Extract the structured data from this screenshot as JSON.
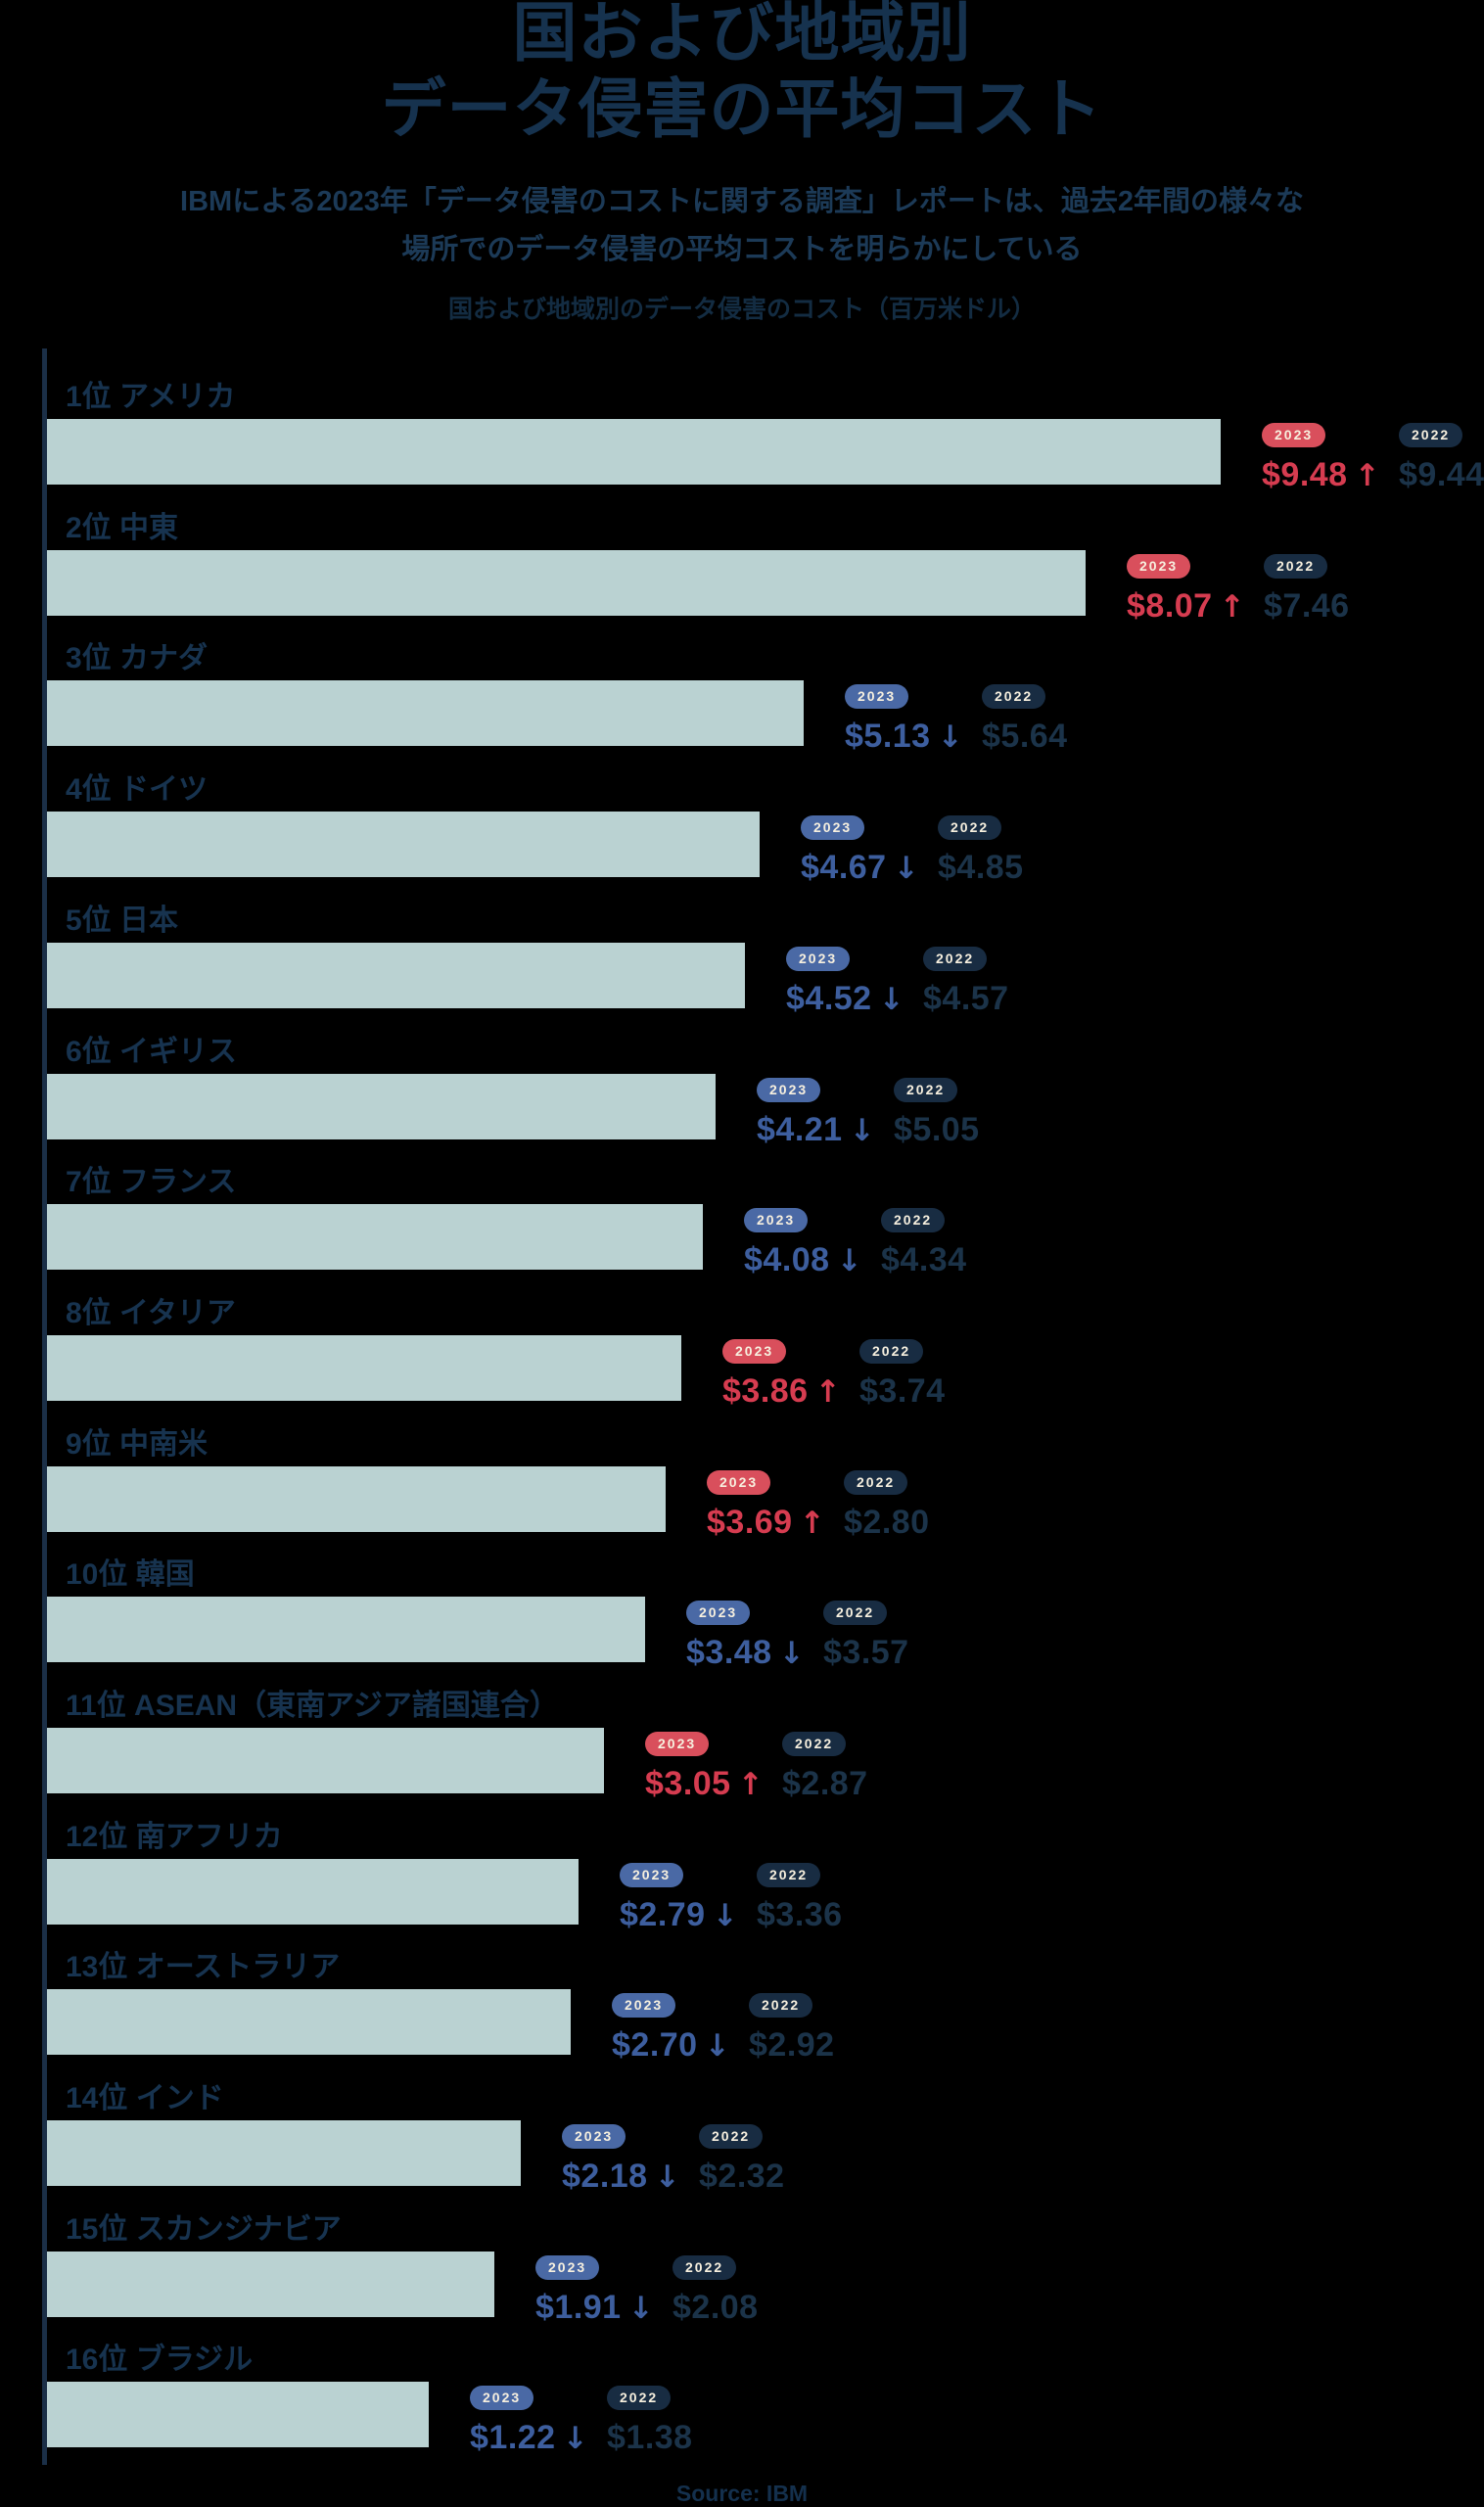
{
  "header": {
    "title_line1": "国および地域別",
    "title_line2": "データ侵害の平均コスト",
    "subtitle_line1": "IBMによる2023年「データ侵害のコストに関する調査」レポートは、過去2年間の様々な",
    "subtitle_line2": "場所でのデータ侵害の平均コストを明らかにしている",
    "chart_caption": "国および地域別のデータ侵害のコスト（百万米ドル）"
  },
  "footer": {
    "source": "Source: IBM"
  },
  "colors": {
    "background": "#000000",
    "bar_fill": "#bad2d2",
    "axis_line": "#1b2f47",
    "title_text": "#16324e",
    "label_text": "#17334f",
    "badge_text": "#f7f0df",
    "badge_2022_bg": "#182c42",
    "badge_2023_up_bg": "#d94f5c",
    "badge_2023_down_bg": "#4a69a5",
    "value_2022": "#1b3349",
    "value_2023_up": "#d63c50",
    "value_2023_down": "#3d5e9e"
  },
  "chart_data": {
    "type": "bar",
    "title": "国および地域別のデータ侵害のコスト（百万米ドル）",
    "unit": "USD millions",
    "legend": [
      "2023",
      "2022"
    ],
    "orientation": "horizontal",
    "categories": [
      "1位 アメリカ",
      "2位 中東",
      "3位 カナダ",
      "4位 ドイツ",
      "5位 日本",
      "6位 イギリス",
      "7位 フランス",
      "8位 イタリア",
      "9位 中南米",
      "10位 韓国",
      "11位 ASEAN（東南アジア諸国連合）",
      "12位 南アフリカ",
      "13位 オーストラリア",
      "14位 インド",
      "15位 スカンジナビア",
      "16位 ブラジル"
    ],
    "series": [
      {
        "name": "2023",
        "values": [
          9.48,
          8.07,
          5.13,
          4.67,
          4.52,
          4.21,
          4.08,
          3.86,
          3.69,
          3.48,
          3.05,
          2.79,
          2.7,
          2.18,
          1.91,
          1.22
        ]
      },
      {
        "name": "2022",
        "values": [
          9.44,
          7.46,
          5.64,
          4.85,
          4.57,
          5.05,
          4.34,
          3.74,
          2.8,
          3.57,
          2.87,
          3.36,
          2.92,
          2.32,
          2.08,
          1.38
        ]
      }
    ],
    "rows": [
      {
        "rank": "1位",
        "name": "アメリカ",
        "v2023": 9.48,
        "dir": "up",
        "v2022": 9.44
      },
      {
        "rank": "2位",
        "name": "中東",
        "v2023": 8.07,
        "dir": "up",
        "v2022": 7.46
      },
      {
        "rank": "3位",
        "name": "カナダ",
        "v2023": 5.13,
        "dir": "down",
        "v2022": 5.64
      },
      {
        "rank": "4位",
        "name": "ドイツ",
        "v2023": 4.67,
        "dir": "down",
        "v2022": 4.85
      },
      {
        "rank": "5位",
        "name": "日本",
        "v2023": 4.52,
        "dir": "down",
        "v2022": 4.57
      },
      {
        "rank": "6位",
        "name": "イギリス",
        "v2023": 4.21,
        "dir": "down",
        "v2022": 5.05
      },
      {
        "rank": "7位",
        "name": "フランス",
        "v2023": 4.08,
        "dir": "down",
        "v2022": 4.34
      },
      {
        "rank": "8位",
        "name": "イタリア",
        "v2023": 3.86,
        "dir": "up",
        "v2022": 3.74
      },
      {
        "rank": "9位",
        "name": "中南米",
        "v2023": 3.69,
        "dir": "up",
        "v2022": 2.8
      },
      {
        "rank": "10位",
        "name": "韓国",
        "v2023": 3.48,
        "dir": "down",
        "v2022": 3.57
      },
      {
        "rank": "11位",
        "name": "ASEAN（東南アジア諸国連合）",
        "v2023": 3.05,
        "dir": "up",
        "v2022": 2.87
      },
      {
        "rank": "12位",
        "name": "南アフリカ",
        "v2023": 2.79,
        "dir": "down",
        "v2022": 3.36
      },
      {
        "rank": "13位",
        "name": "オーストラリア",
        "v2023": 2.7,
        "dir": "down",
        "v2022": 2.92
      },
      {
        "rank": "14位",
        "name": "インド",
        "v2023": 2.18,
        "dir": "down",
        "v2022": 2.32
      },
      {
        "rank": "15位",
        "name": "スカンジナビア",
        "v2023": 1.91,
        "dir": "down",
        "v2022": 2.08
      },
      {
        "rank": "16位",
        "name": "ブラジル",
        "v2023": 1.22,
        "dir": "down",
        "v2022": 1.38
      }
    ],
    "badge_labels": {
      "current": "2023",
      "previous": "2022"
    },
    "arrows": {
      "up": "↑",
      "down": "↓"
    }
  }
}
